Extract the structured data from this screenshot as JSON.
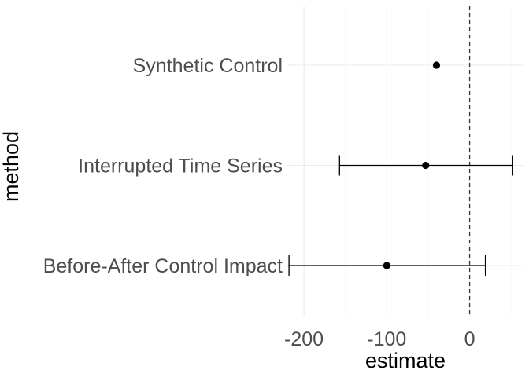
{
  "chart_data": {
    "type": "scatter",
    "subtype": "point-range (horizontal error bars)",
    "title": "",
    "xlabel": "estimate",
    "ylabel": "method",
    "xlim": [
      -220,
      65
    ],
    "x_ticks": [
      -200,
      -100,
      0
    ],
    "x_tick_labels": [
      "-200",
      "-100",
      "0"
    ],
    "categories": [
      "Synthetic Control",
      "Interrupted Time Series",
      "Before-After Control Impact"
    ],
    "estimates": [
      -40,
      -53,
      -100
    ],
    "lower": [
      null,
      -157,
      -218
    ],
    "upper": [
      null,
      52,
      19
    ],
    "reference_line": {
      "x": 0,
      "style": "dashed"
    },
    "grid": true,
    "legend": "none",
    "point_color": "#000000"
  }
}
